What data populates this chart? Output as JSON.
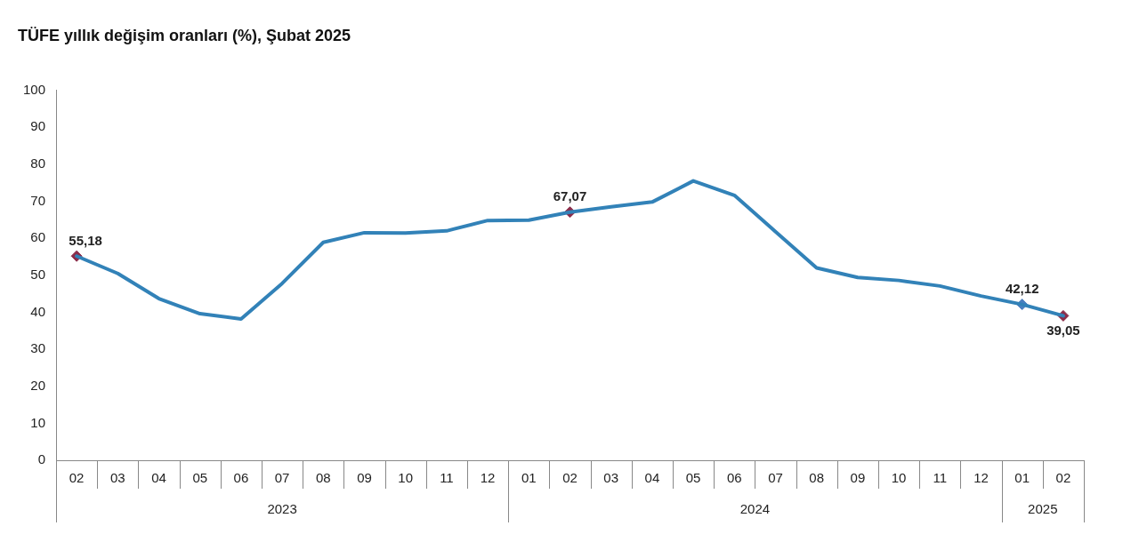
{
  "chart_data": {
    "type": "line",
    "title": "TÜFE yıllık değişim oranları (%), Şubat 2025",
    "categories": [
      "02",
      "03",
      "04",
      "05",
      "06",
      "07",
      "08",
      "09",
      "10",
      "11",
      "12",
      "01",
      "02",
      "03",
      "04",
      "05",
      "06",
      "07",
      "08",
      "09",
      "10",
      "11",
      "12",
      "01",
      "02"
    ],
    "series": [
      {
        "color": "#3282b8",
        "marker": "none",
        "line_style": "solid",
        "values": [
          55.18,
          50.5,
          43.7,
          39.6,
          38.2,
          47.8,
          58.9,
          61.5,
          61.4,
          62,
          64.8,
          64.9,
          67.07,
          68.5,
          69.8,
          75.5,
          71.6,
          61.8,
          52,
          49.4,
          48.6,
          47.1,
          44.4,
          42.12,
          39.05
        ],
        "value_labels": [
          "55,18",
          null,
          null,
          null,
          null,
          null,
          null,
          null,
          null,
          null,
          null,
          null,
          "67,07",
          null,
          null,
          null,
          null,
          null,
          null,
          null,
          null,
          null,
          null,
          "42,12",
          "39,05"
        ]
      },
      {
        "type": "scatter",
        "color": "#8b2c4a",
        "marker": "diamond",
        "values": [
          55.18,
          null,
          null,
          null,
          null,
          null,
          null,
          null,
          null,
          null,
          null,
          null,
          67.07,
          null,
          null,
          null,
          null,
          null,
          null,
          null,
          null,
          null,
          null,
          42.12,
          39.05
        ],
        "colors": [
          "#8b2c4a",
          null,
          null,
          null,
          null,
          null,
          null,
          null,
          null,
          null,
          null,
          null,
          "#8b2c4a",
          null,
          null,
          null,
          null,
          null,
          null,
          null,
          null,
          null,
          null,
          "#4a7fc0",
          "#8b2c4a"
        ]
      }
    ],
    "annotations": [
      "2023",
      "2024",
      "2025"
    ],
    "ylim": [
      0,
      100
    ],
    "yticks": [
      0,
      10,
      20,
      30,
      40,
      50,
      60,
      70,
      80,
      90,
      100
    ],
    "grid": false,
    "legend": false
  }
}
